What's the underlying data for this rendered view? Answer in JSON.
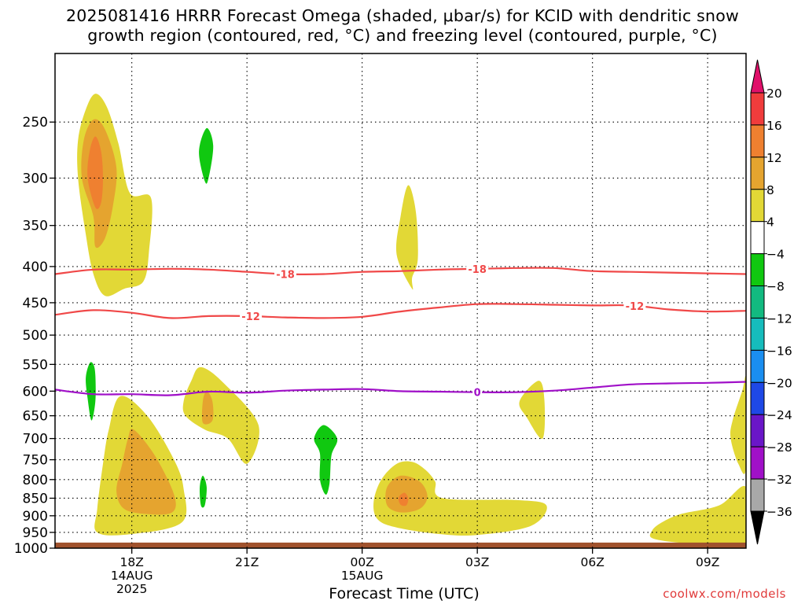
{
  "title_line1": "2025081416 HRRR Forecast Omega (shaded, μbar/s) for KCID with dendritic snow",
  "title_line2": "growth region (contoured, red, °C) and freezing level (contoured, purple, °C)",
  "xlabel": "Forecast Time (UTC)",
  "credit": "coolwx.com/models",
  "chart_data": {
    "type": "heatmap",
    "title": "2025081416 HRRR Forecast Omega (shaded, μbar/s) for KCID with dendritic snow growth region (contoured, red, °C) and freezing level (contoured, purple, °C)",
    "xlabel": "Forecast Time (UTC)",
    "ylabel": "",
    "x_unit": "forecast hour from 2025-08-14 16Z",
    "xlim": [
      0,
      18
    ],
    "ylim_hPa": [
      1000,
      200
    ],
    "y_scale": "log",
    "grid": true,
    "x_ticks": [
      {
        "x": 2,
        "label": "18Z",
        "sub1": "14AUG",
        "sub2": "2025"
      },
      {
        "x": 5,
        "label": "21Z",
        "sub1": "",
        "sub2": ""
      },
      {
        "x": 8,
        "label": "00Z",
        "sub1": "15AUG",
        "sub2": ""
      },
      {
        "x": 11,
        "label": "03Z",
        "sub1": "",
        "sub2": ""
      },
      {
        "x": 14,
        "label": "06Z",
        "sub1": "",
        "sub2": ""
      },
      {
        "x": 17,
        "label": "09Z",
        "sub1": "",
        "sub2": ""
      }
    ],
    "y_ticks": [
      250,
      300,
      350,
      400,
      450,
      500,
      550,
      600,
      650,
      700,
      750,
      800,
      850,
      900,
      950,
      1000
    ],
    "colorbar": {
      "labels": [
        "20",
        "16",
        "12",
        "8",
        "4",
        "−4",
        "−8",
        "−12",
        "−16",
        "−20",
        "−24",
        "−28",
        "−32",
        "−36"
      ],
      "colors": [
        "#f03c3c",
        "#ef8030",
        "#e5a42f",
        "#e2d836",
        "#ffffff",
        "#10c810",
        "#12ba80",
        "#16bcbc",
        "#1a8ef0",
        "#1e48e6",
        "#6a16c8",
        "#a010c8",
        "#a8a8a8"
      ],
      "top_arrow_color": "#e0106a",
      "bottom_arrow_color": "#000000"
    },
    "omega_regions": [
      {
        "level": "4",
        "color": "#e2d836",
        "points": [
          [
            1.0,
            410
          ],
          [
            0.8,
            360
          ],
          [
            0.6,
            300
          ],
          [
            0.6,
            265
          ],
          [
            0.8,
            240
          ],
          [
            1.05,
            228
          ],
          [
            1.35,
            238
          ],
          [
            1.65,
            268
          ],
          [
            1.95,
            315
          ],
          [
            2.5,
            320
          ],
          [
            2.45,
            380
          ],
          [
            2.3,
            420
          ],
          [
            1.8,
            430
          ],
          [
            1.3,
            440
          ]
        ]
      },
      {
        "level": "8",
        "color": "#e5a42f",
        "points": [
          [
            1.0,
            340
          ],
          [
            0.7,
            300
          ],
          [
            0.75,
            265
          ],
          [
            1.0,
            248
          ],
          [
            1.3,
            256
          ],
          [
            1.6,
            290
          ],
          [
            1.5,
            330
          ],
          [
            1.3,
            365
          ],
          [
            1.05,
            375
          ]
        ]
      },
      {
        "level": "12",
        "color": "#ef8030",
        "points": [
          [
            1.05,
            330
          ],
          [
            0.85,
            300
          ],
          [
            0.9,
            275
          ],
          [
            1.05,
            262
          ],
          [
            1.2,
            275
          ],
          [
            1.25,
            300
          ],
          [
            1.2,
            325
          ]
        ]
      },
      {
        "level": "-4",
        "color": "#10c810",
        "points": [
          [
            3.95,
            255
          ],
          [
            4.12,
            270
          ],
          [
            4.0,
            300
          ],
          [
            3.9,
            303
          ],
          [
            3.75,
            275
          ]
        ]
      },
      {
        "level": "4",
        "color": "#e2d836",
        "points": [
          [
            9.3,
            430
          ],
          [
            8.9,
            385
          ],
          [
            9.0,
            340
          ],
          [
            9.2,
            307
          ],
          [
            9.4,
            335
          ],
          [
            9.45,
            390
          ],
          [
            9.3,
            415
          ]
        ]
      },
      {
        "level": "-4",
        "color": "#10c810",
        "points": [
          [
            1.0,
            550
          ],
          [
            1.05,
            570
          ],
          [
            1.05,
            620
          ],
          [
            0.95,
            660
          ],
          [
            0.85,
            615
          ],
          [
            0.8,
            575
          ],
          [
            0.9,
            548
          ]
        ]
      },
      {
        "level": "4",
        "color": "#e2d836",
        "points": [
          [
            1.7,
            610
          ],
          [
            2.4,
            650
          ],
          [
            3.1,
            750
          ],
          [
            3.35,
            825
          ],
          [
            3.3,
            920
          ],
          [
            2.0,
            955
          ],
          [
            1.1,
            950
          ],
          [
            1.1,
            880
          ],
          [
            1.25,
            760
          ],
          [
            1.4,
            680
          ]
        ]
      },
      {
        "level": "8",
        "color": "#e5a42f",
        "points": [
          [
            2.05,
            680
          ],
          [
            2.6,
            740
          ],
          [
            3.1,
            840
          ],
          [
            3.05,
            890
          ],
          [
            2.4,
            895
          ],
          [
            1.8,
            880
          ],
          [
            1.6,
            830
          ],
          [
            1.75,
            760
          ],
          [
            1.9,
            700
          ]
        ]
      },
      {
        "level": "4",
        "color": "#e2d836",
        "points": [
          [
            3.8,
            555
          ],
          [
            4.4,
            585
          ],
          [
            5.3,
            670
          ],
          [
            5.0,
            760
          ],
          [
            4.5,
            700
          ],
          [
            3.9,
            680
          ],
          [
            3.4,
            650
          ],
          [
            3.35,
            620
          ],
          [
            3.55,
            580
          ]
        ]
      },
      {
        "level": "8",
        "color": "#e5a42f",
        "points": [
          [
            3.95,
            600
          ],
          [
            4.1,
            620
          ],
          [
            4.1,
            660
          ],
          [
            3.85,
            665
          ],
          [
            3.85,
            620
          ]
        ]
      },
      {
        "level": "-4",
        "color": "#10c810",
        "points": [
          [
            3.85,
            790
          ],
          [
            3.95,
            820
          ],
          [
            3.9,
            870
          ],
          [
            3.8,
            870
          ],
          [
            3.77,
            820
          ]
        ]
      },
      {
        "level": "-4",
        "color": "#10c810",
        "points": [
          [
            7.0,
            670
          ],
          [
            7.35,
            700
          ],
          [
            7.2,
            740
          ],
          [
            7.15,
            810
          ],
          [
            7.05,
            840
          ],
          [
            6.9,
            800
          ],
          [
            6.9,
            735
          ],
          [
            6.75,
            700
          ]
        ]
      },
      {
        "level": "4",
        "color": "#e2d836",
        "points": [
          [
            8.9,
            760
          ],
          [
            9.3,
            755
          ],
          [
            9.65,
            775
          ],
          [
            9.9,
            805
          ],
          [
            10.1,
            850
          ],
          [
            12.0,
            855
          ],
          [
            12.8,
            870
          ],
          [
            12.4,
            930
          ],
          [
            11.0,
            958
          ],
          [
            10.0,
            955
          ],
          [
            8.9,
            935
          ],
          [
            8.4,
            910
          ],
          [
            8.3,
            860
          ],
          [
            8.5,
            800
          ]
        ]
      },
      {
        "level": "8",
        "color": "#e5a42f",
        "points": [
          [
            9.0,
            790
          ],
          [
            9.5,
            805
          ],
          [
            9.7,
            845
          ],
          [
            9.5,
            880
          ],
          [
            9.0,
            890
          ],
          [
            8.65,
            870
          ],
          [
            8.65,
            820
          ]
        ]
      },
      {
        "level": "12",
        "color": "#ef8030",
        "points": [
          [
            9.1,
            835
          ],
          [
            9.2,
            850
          ],
          [
            9.15,
            870
          ],
          [
            9.0,
            868
          ],
          [
            8.95,
            848
          ]
        ]
      },
      {
        "level": "4",
        "color": "#e2d836",
        "points": [
          [
            12.6,
            580
          ],
          [
            12.75,
            620
          ],
          [
            12.7,
            700
          ],
          [
            12.3,
            655
          ],
          [
            12.1,
            620
          ]
        ]
      },
      {
        "level": "4",
        "color": "#e2d836",
        "points": [
          [
            18.0,
            580
          ],
          [
            17.9,
            600
          ],
          [
            17.65,
            660
          ],
          [
            17.6,
            700
          ],
          [
            17.8,
            760
          ],
          [
            18.0,
            770
          ]
        ]
      },
      {
        "level": "4",
        "color": "#e2d836",
        "points": [
          [
            18.0,
            820
          ],
          [
            17.3,
            870
          ],
          [
            16.3,
            895
          ],
          [
            15.8,
            920
          ],
          [
            15.55,
            945
          ],
          [
            15.6,
            970
          ],
          [
            16.6,
            985
          ],
          [
            18.0,
            985
          ]
        ]
      }
    ],
    "contours": [
      {
        "kind": "dendritic snow growth",
        "color": "#f04848",
        "label": "-18",
        "label_x": [
          6.0,
          11.0
        ],
        "points": [
          [
            0,
            410
          ],
          [
            1,
            404
          ],
          [
            2,
            404
          ],
          [
            3,
            403
          ],
          [
            4,
            404
          ],
          [
            5,
            407
          ],
          [
            6,
            410
          ],
          [
            7,
            410
          ],
          [
            8,
            407
          ],
          [
            9,
            406
          ],
          [
            10,
            404
          ],
          [
            11,
            403
          ],
          [
            12,
            402
          ],
          [
            13,
            402
          ],
          [
            14,
            406
          ],
          [
            15,
            407
          ],
          [
            16,
            408
          ],
          [
            17,
            409
          ],
          [
            18,
            410
          ]
        ]
      },
      {
        "kind": "dendritic snow growth",
        "color": "#f04848",
        "label": "-12",
        "label_x": [
          5.1,
          15.1
        ],
        "points": [
          [
            0,
            468
          ],
          [
            1,
            461
          ],
          [
            2,
            465
          ],
          [
            3,
            473
          ],
          [
            4,
            470
          ],
          [
            5,
            470
          ],
          [
            6,
            472
          ],
          [
            7,
            473
          ],
          [
            8,
            471
          ],
          [
            9,
            463
          ],
          [
            10,
            457
          ],
          [
            11,
            452
          ],
          [
            12,
            452
          ],
          [
            13,
            453
          ],
          [
            14,
            454
          ],
          [
            15,
            454
          ],
          [
            16,
            460
          ],
          [
            17,
            463
          ],
          [
            18,
            462
          ]
        ]
      },
      {
        "kind": "freezing level",
        "color": "#a010c8",
        "label": "0",
        "label_x": [
          11.0
        ],
        "points": [
          [
            0,
            597
          ],
          [
            1,
            606
          ],
          [
            2,
            606
          ],
          [
            3,
            608
          ],
          [
            4,
            601
          ],
          [
            5,
            603
          ],
          [
            6,
            599
          ],
          [
            7,
            597
          ],
          [
            8,
            596
          ],
          [
            9,
            600
          ],
          [
            10,
            601
          ],
          [
            11,
            602
          ],
          [
            12,
            602
          ],
          [
            13,
            599
          ],
          [
            14,
            593
          ],
          [
            15,
            587
          ],
          [
            16,
            585
          ],
          [
            17,
            584
          ],
          [
            18,
            582
          ]
        ]
      }
    ],
    "ground": {
      "color": "#a0522d",
      "top_hPa": 982
    }
  }
}
